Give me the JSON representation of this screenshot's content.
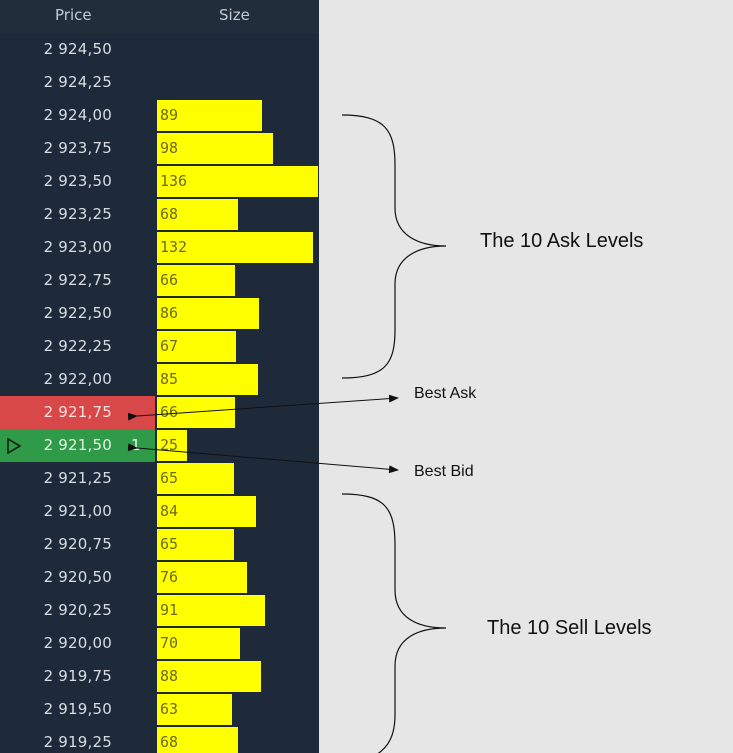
{
  "header": {
    "price_label": "Price",
    "size_label": "Size"
  },
  "rows": [
    {
      "price": "2 924,50",
      "size": "",
      "size_value": 0,
      "state": "normal"
    },
    {
      "price": "2 924,25",
      "size": "",
      "size_value": 0,
      "state": "normal"
    },
    {
      "price": "2 924,00",
      "size": "89",
      "size_value": 89,
      "state": "normal"
    },
    {
      "price": "2 923,75",
      "size": "98",
      "size_value": 98,
      "state": "normal"
    },
    {
      "price": "2 923,50",
      "size": "136",
      "size_value": 136,
      "state": "normal"
    },
    {
      "price": "2 923,25",
      "size": "68",
      "size_value": 68,
      "state": "normal"
    },
    {
      "price": "2 923,00",
      "size": "132",
      "size_value": 132,
      "state": "normal"
    },
    {
      "price": "2 922,75",
      "size": "66",
      "size_value": 66,
      "state": "normal"
    },
    {
      "price": "2 922,50",
      "size": "86",
      "size_value": 86,
      "state": "normal"
    },
    {
      "price": "2 922,25",
      "size": "67",
      "size_value": 67,
      "state": "normal"
    },
    {
      "price": "2 922,00",
      "size": "85",
      "size_value": 85,
      "state": "normal"
    },
    {
      "price": "2 921,75",
      "size": "66",
      "size_value": 66,
      "state": "best-ask"
    },
    {
      "price": "2 921,50",
      "size": "25",
      "size_value": 25,
      "state": "best-bid",
      "bid_qty": "1"
    },
    {
      "price": "2 921,25",
      "size": "65",
      "size_value": 65,
      "state": "normal"
    },
    {
      "price": "2 921,00",
      "size": "84",
      "size_value": 84,
      "state": "normal"
    },
    {
      "price": "2 920,75",
      "size": "65",
      "size_value": 65,
      "state": "normal"
    },
    {
      "price": "2 920,50",
      "size": "76",
      "size_value": 76,
      "state": "normal"
    },
    {
      "price": "2 920,25",
      "size": "91",
      "size_value": 91,
      "state": "normal"
    },
    {
      "price": "2 920,00",
      "size": "70",
      "size_value": 70,
      "state": "normal"
    },
    {
      "price": "2 919,75",
      "size": "88",
      "size_value": 88,
      "state": "normal"
    },
    {
      "price": "2 919,50",
      "size": "63",
      "size_value": 63,
      "state": "normal"
    },
    {
      "price": "2 919,25",
      "size": "68",
      "size_value": 68,
      "state": "normal"
    }
  ],
  "annotations": {
    "ask_levels": "The 10 Ask Levels",
    "sell_levels": "The 10 Sell Levels",
    "best_ask": "Best Ask",
    "best_bid": "Best Bid"
  },
  "colors": {
    "panel_bg": "#1e2a3a",
    "bar": "#ffff00",
    "best_ask": "#d94848",
    "best_bid": "#2f9a48",
    "page_bg": "#e6e6e6"
  },
  "icons": {
    "bid_cursor": "play-triangle-outline-icon"
  }
}
